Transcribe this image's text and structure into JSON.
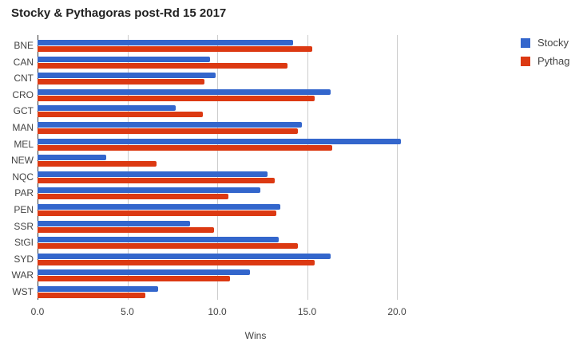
{
  "chart_data": {
    "type": "bar",
    "orientation": "horizontal",
    "title": "Stocky & Pythagoras post-Rd 15 2017",
    "xlabel": "Wins",
    "ylabel": "",
    "xlim": [
      0,
      22.5
    ],
    "xticks": [
      "0.0",
      "5.0",
      "10.0",
      "15.0",
      "20.0"
    ],
    "grid": true,
    "legend_position": "right",
    "categories": [
      "BNE",
      "CAN",
      "CNT",
      "CRO",
      "GCT",
      "MAN",
      "MEL",
      "NEW",
      "NQC",
      "PAR",
      "PEN",
      "SSR",
      "StGI",
      "SYD",
      "WAR",
      "WST"
    ],
    "series": [
      {
        "name": "Stocky",
        "color": "#3366cc",
        "values": [
          14.2,
          9.6,
          9.9,
          16.3,
          7.7,
          14.7,
          20.2,
          3.8,
          12.8,
          12.4,
          13.5,
          8.5,
          13.4,
          16.3,
          11.8,
          6.7
        ]
      },
      {
        "name": "Pythag",
        "color": "#dc3912",
        "values": [
          15.3,
          13.9,
          9.3,
          15.4,
          9.2,
          14.5,
          16.4,
          6.6,
          13.2,
          10.6,
          13.3,
          9.8,
          14.5,
          15.4,
          10.7,
          6.0
        ]
      }
    ]
  }
}
